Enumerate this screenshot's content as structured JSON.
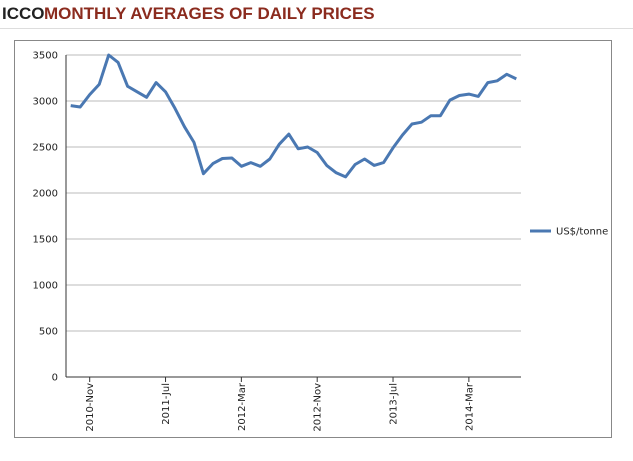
{
  "header": {
    "brand": "ICCO",
    "title": "MONTHLY AVERAGES OF DAILY PRICES"
  },
  "chart_data": {
    "type": "line",
    "categories": [
      null,
      null,
      "2010-Nov",
      null,
      null,
      null,
      null,
      null,
      null,
      null,
      "2011-Jul",
      null,
      null,
      null,
      null,
      null,
      null,
      null,
      "2012-Mar",
      null,
      null,
      null,
      null,
      null,
      null,
      null,
      "2012-Nov",
      null,
      null,
      null,
      null,
      null,
      null,
      null,
      "2013-Jul",
      null,
      null,
      null,
      null,
      null,
      null,
      null,
      "2014-Mar",
      null,
      null,
      null,
      null,
      null
    ],
    "series": [
      {
        "name": "US$/tonne",
        "color": "#4a78b2",
        "values": [
          2950,
          2935,
          3070,
          3180,
          3500,
          3420,
          3160,
          3100,
          3040,
          3200,
          3100,
          2920,
          2720,
          2550,
          2210,
          2320,
          2375,
          2380,
          2290,
          2330,
          2290,
          2370,
          2530,
          2640,
          2480,
          2500,
          2440,
          2300,
          2220,
          2175,
          2310,
          2370,
          2300,
          2330,
          2490,
          2630,
          2750,
          2770,
          2840,
          2840,
          3010,
          3060,
          3075,
          3050,
          3200,
          3220,
          3290,
          3240
        ]
      }
    ],
    "ylim": [
      0,
      3500
    ],
    "yticks": [
      0,
      500,
      1000,
      1500,
      2000,
      2500,
      3000,
      3500
    ],
    "grid": true,
    "legend": "right"
  }
}
